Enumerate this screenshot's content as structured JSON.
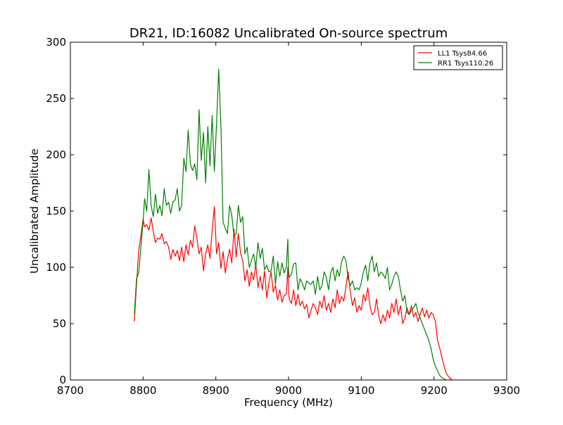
{
  "chart_data": {
    "type": "line",
    "title": "DR21, ID:16082 Uncalibrated On-source spectrum",
    "xlabel": "Frequency (MHz)",
    "ylabel": "Uncalibrated Amplitude",
    "xlim": [
      8700,
      9300
    ],
    "ylim": [
      0,
      300
    ],
    "xticks": [
      8700,
      8800,
      8900,
      9000,
      9100,
      9200,
      9300
    ],
    "yticks": [
      0,
      50,
      100,
      150,
      200,
      250,
      300
    ],
    "grid": false,
    "legend_position": "top-right",
    "series": [
      {
        "name": "LL1 Tsys84.66",
        "color": "#ff0000",
        "x": [
          8788,
          8791,
          8794,
          8797,
          8800,
          8802,
          8805,
          8808,
          8811,
          8814,
          8817,
          8820,
          8823,
          8826,
          8829,
          8832,
          8835,
          8838,
          8841,
          8844,
          8847,
          8850,
          8853,
          8856,
          8859,
          8862,
          8865,
          8868,
          8871,
          8874,
          8877,
          8880,
          8883,
          8886,
          8889,
          8892,
          8895,
          8898,
          8901,
          8904,
          8907,
          8910,
          8913,
          8916,
          8919,
          8922,
          8925,
          8928,
          8931,
          8934,
          8937,
          8940,
          8943,
          8946,
          8949,
          8952,
          8955,
          8958,
          8961,
          8964,
          8967,
          8970,
          8973,
          8976,
          8979,
          8982,
          8985,
          8988,
          8991,
          8994,
          8997,
          8999,
          9000,
          9001,
          9004,
          9007,
          9010,
          9013,
          9016,
          9019,
          9022,
          9025,
          9028,
          9031,
          9034,
          9037,
          9040,
          9043,
          9046,
          9049,
          9052,
          9055,
          9058,
          9061,
          9064,
          9067,
          9070,
          9073,
          9076,
          9079,
          9082,
          9085,
          9088,
          9091,
          9094,
          9097,
          9100,
          9103,
          9106,
          9109,
          9112,
          9115,
          9118,
          9121,
          9124,
          9127,
          9130,
          9133,
          9136,
          9139,
          9142,
          9145,
          9148,
          9151,
          9154,
          9157,
          9160,
          9163,
          9166,
          9169,
          9172,
          9175,
          9178,
          9181,
          9184,
          9187,
          9190,
          9193,
          9196,
          9199,
          9202,
          9205,
          9208,
          9211,
          9214,
          9217,
          9220,
          9223,
          9225
        ],
        "values": [
          52,
          85,
          115,
          128,
          143,
          136,
          138,
          133,
          144,
          132,
          122,
          126,
          125,
          130,
          121,
          123,
          118,
          107,
          116,
          110,
          115,
          106,
          118,
          105,
          120,
          111,
          124,
          118,
          137,
          126,
          112,
          118,
          97,
          112,
          120,
          108,
          133,
          154,
          112,
          122,
          99,
          114,
          95,
          107,
          116,
          104,
          134,
          109,
          130,
          113,
          106,
          88,
          98,
          83,
          96,
          89,
          103,
          82,
          92,
          80,
          97,
          73,
          86,
          96,
          78,
          84,
          71,
          80,
          69,
          75,
          76,
          100,
          80,
          72,
          68,
          80,
          66,
          76,
          66,
          70,
          63,
          67,
          55,
          62,
          68,
          64,
          58,
          70,
          64,
          75,
          62,
          68,
          60,
          72,
          64,
          80,
          68,
          74,
          70,
          83,
          96,
          78,
          66,
          73,
          60,
          66,
          62,
          76,
          70,
          82,
          66,
          58,
          60,
          72,
          57,
          50,
          58,
          52,
          62,
          55,
          68,
          60,
          72,
          58,
          66,
          50,
          55,
          64,
          58,
          66,
          56,
          60,
          52,
          58,
          64,
          56,
          62,
          55,
          60,
          58,
          52,
          35,
          28,
          20,
          12,
          6,
          3,
          1,
          0
        ]
      },
      {
        "name": "RR1 Tsys110.26",
        "color": "#008000",
        "x": [
          8788,
          8791,
          8794,
          8797,
          8800,
          8802,
          8805,
          8808,
          8811,
          8814,
          8817,
          8820,
          8823,
          8826,
          8829,
          8832,
          8835,
          8838,
          8841,
          8844,
          8847,
          8850,
          8853,
          8856,
          8859,
          8862,
          8865,
          8868,
          8871,
          8874,
          8877,
          8880,
          8883,
          8886,
          8889,
          8892,
          8895,
          8898,
          8901,
          8904,
          8907,
          8908,
          8910,
          8913,
          8916,
          8919,
          8922,
          8925,
          8928,
          8931,
          8934,
          8937,
          8940,
          8943,
          8946,
          8949,
          8952,
          8955,
          8958,
          8961,
          8964,
          8967,
          8970,
          8973,
          8976,
          8979,
          8982,
          8985,
          8988,
          8991,
          8994,
          8997,
          8999,
          9000,
          9001,
          9004,
          9007,
          9010,
          9013,
          9016,
          9019,
          9022,
          9025,
          9028,
          9031,
          9034,
          9037,
          9040,
          9043,
          9046,
          9049,
          9052,
          9055,
          9058,
          9061,
          9064,
          9067,
          9070,
          9073,
          9076,
          9079,
          9082,
          9085,
          9088,
          9091,
          9094,
          9097,
          9100,
          9103,
          9106,
          9109,
          9112,
          9115,
          9118,
          9121,
          9124,
          9127,
          9130,
          9133,
          9136,
          9139,
          9142,
          9145,
          9148,
          9151,
          9154,
          9157,
          9160,
          9163,
          9166,
          9169,
          9172,
          9175,
          9178,
          9181,
          9184,
          9187,
          9190,
          9193,
          9196,
          9199,
          9202,
          9205,
          9208,
          9211,
          9214,
          9217,
          9220,
          9223,
          9225
        ],
        "values": [
          58,
          90,
          95,
          118,
          140,
          161,
          150,
          187,
          155,
          145,
          165,
          148,
          155,
          146,
          170,
          155,
          158,
          148,
          158,
          160,
          170,
          150,
          155,
          197,
          185,
          222,
          192,
          186,
          192,
          178,
          240,
          195,
          220,
          175,
          225,
          190,
          235,
          185,
          228,
          276,
          225,
          200,
          140,
          135,
          130,
          155,
          146,
          128,
          130,
          155,
          140,
          145,
          112,
          118,
          100,
          106,
          112,
          100,
          122,
          108,
          117,
          98,
          102,
          96,
          97,
          110,
          85,
          105,
          92,
          104,
          95,
          100,
          125,
          98,
          91,
          94,
          103,
          104,
          80,
          90,
          86,
          80,
          88,
          86,
          85,
          88,
          76,
          92,
          80,
          84,
          96,
          91,
          80,
          95,
          100,
          88,
          98,
          92,
          105,
          110,
          106,
          90,
          84,
          88,
          80,
          82,
          80,
          86,
          96,
          102,
          88,
          104,
          110,
          96,
          104,
          92,
          96,
          94,
          90,
          100,
          80,
          85,
          92,
          96,
          92,
          80,
          70,
          75,
          60,
          58,
          62,
          64,
          68,
          60,
          55,
          50,
          45,
          40,
          35,
          28,
          18,
          12,
          8,
          4,
          2,
          1,
          0,
          0,
          0,
          0
        ]
      }
    ]
  }
}
